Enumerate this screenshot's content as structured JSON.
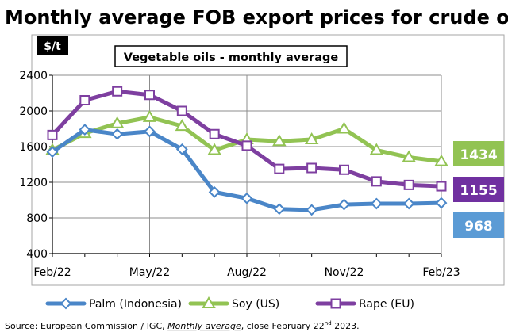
{
  "chart_data": {
    "type": "line",
    "title": "Monthly average FOB export prices for crude oils",
    "subtitle": "Vegetable oils - monthly average",
    "ylabel": "$/t",
    "ylim": [
      400,
      2400
    ],
    "yticks": [
      400,
      800,
      1200,
      1600,
      2000,
      2400
    ],
    "categories": [
      "Feb/22",
      "Mar/22",
      "Apr/22",
      "May/22",
      "Jun/22",
      "Jul/22",
      "Aug/22",
      "Sep/22",
      "Oct/22",
      "Nov/22",
      "Dec/22",
      "Jan/23",
      "Feb/23"
    ],
    "xtick_labels": [
      "Feb/22",
      "May/22",
      "Aug/22",
      "Nov/22",
      "Feb/23"
    ],
    "xtick_indices": [
      0,
      3,
      6,
      9,
      12
    ],
    "grid": true,
    "series": [
      {
        "name": "Palm (Indonesia)",
        "color": "#4a86c8",
        "marker": "diamond",
        "values": [
          1540,
          1790,
          1740,
          1770,
          1570,
          1090,
          1020,
          900,
          890,
          950,
          960,
          960,
          968
        ]
      },
      {
        "name": "Soy (US)",
        "color": "#92c353",
        "marker": "triangle",
        "values": [
          1560,
          1750,
          1860,
          1930,
          1830,
          1560,
          1680,
          1660,
          1680,
          1800,
          1560,
          1480,
          1434
        ]
      },
      {
        "name": "Rape (EU)",
        "color": "#7e3fa0",
        "marker": "square",
        "values": [
          1730,
          2120,
          2220,
          2180,
          2000,
          1740,
          1610,
          1350,
          1360,
          1340,
          1210,
          1170,
          1155
        ]
      }
    ],
    "end_labels": [
      {
        "series": "Soy (US)",
        "text": "1434",
        "color": "#92c353"
      },
      {
        "series": "Rape (EU)",
        "text": "1155",
        "color": "#7030a0"
      },
      {
        "series": "Palm (Indonesia)",
        "text": "968",
        "color": "#5b9bd5"
      }
    ],
    "legend": [
      "Palm (Indonesia)",
      "Soy (US)",
      "Rape (EU)"
    ],
    "legend_position": "bottom"
  },
  "source_prefix": "Source: European Commission / IGC, ",
  "source_italic": "Monthly average",
  "source_mid": ", close February 22",
  "source_sup": "nd",
  "source_suffix": " 2023."
}
